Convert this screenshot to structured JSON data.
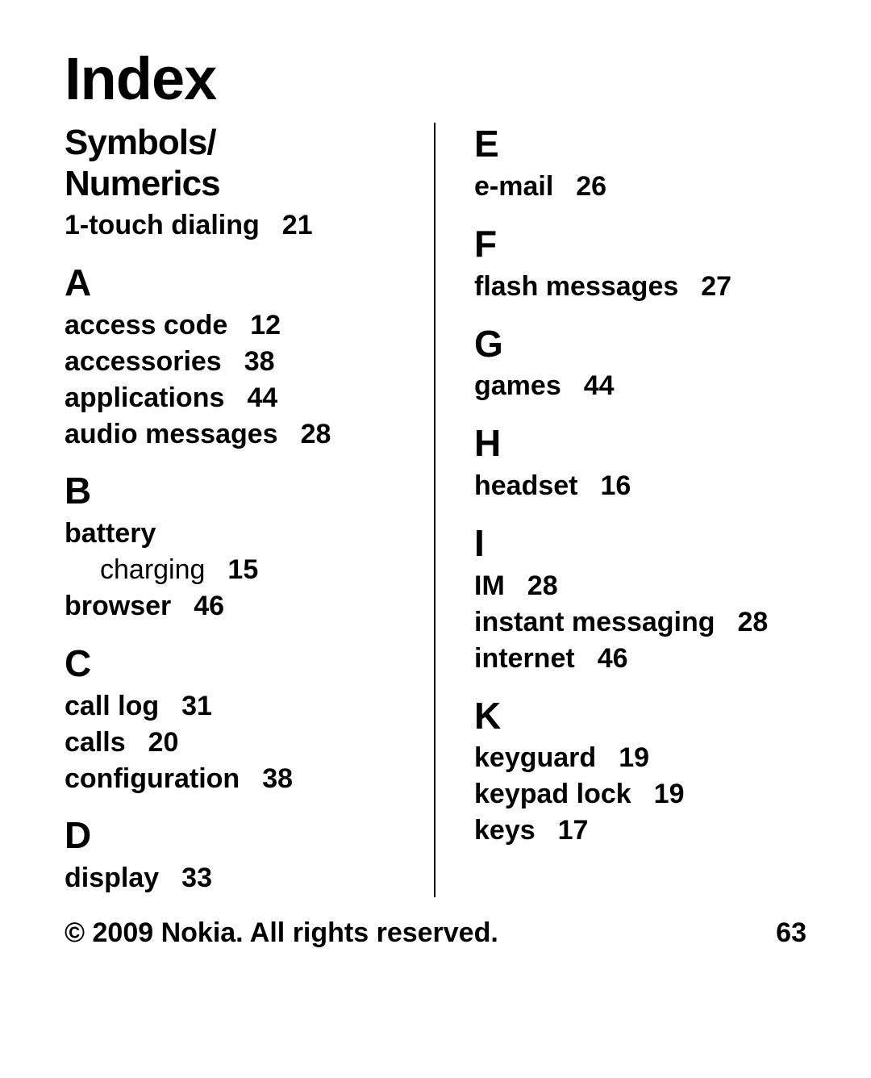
{
  "title": "Index",
  "footer": {
    "copyright": "© 2009 Nokia. All rights reserved.",
    "page": "63"
  },
  "left": {
    "symbols": {
      "heading": "Symbols/\nNumerics",
      "items": [
        {
          "label": "1-touch dialing",
          "page": "21"
        }
      ]
    },
    "A": {
      "heading": "A",
      "items": [
        {
          "label": "access code",
          "page": "12"
        },
        {
          "label": "accessories",
          "page": "38"
        },
        {
          "label": "applications",
          "page": "44"
        },
        {
          "label": "audio messages",
          "page": "28"
        }
      ]
    },
    "B": {
      "heading": "B",
      "items": [
        {
          "label": "battery",
          "page": ""
        },
        {
          "sub": true,
          "label": "charging",
          "page": "15"
        },
        {
          "label": "browser",
          "page": "46"
        }
      ]
    },
    "C": {
      "heading": "C",
      "items": [
        {
          "label": "call log",
          "page": "31"
        },
        {
          "label": "calls",
          "page": "20"
        },
        {
          "label": "configuration",
          "page": "38"
        }
      ]
    },
    "D": {
      "heading": "D",
      "items": [
        {
          "label": "display",
          "page": "33"
        }
      ]
    }
  },
  "right": {
    "E": {
      "heading": "E",
      "items": [
        {
          "label": "e-mail",
          "page": "26"
        }
      ]
    },
    "F": {
      "heading": "F",
      "items": [
        {
          "label": "flash messages",
          "page": "27"
        }
      ]
    },
    "G": {
      "heading": "G",
      "items": [
        {
          "label": "games",
          "page": "44"
        }
      ]
    },
    "H": {
      "heading": "H",
      "items": [
        {
          "label": "headset",
          "page": "16"
        }
      ]
    },
    "I": {
      "heading": "I",
      "items": [
        {
          "label": "IM",
          "page": "28"
        },
        {
          "label": "instant messaging",
          "page": "28"
        },
        {
          "label": "internet",
          "page": "46"
        }
      ]
    },
    "K": {
      "heading": "K",
      "items": [
        {
          "label": "keyguard",
          "page": "19"
        },
        {
          "label": "keypad lock",
          "page": "19"
        },
        {
          "label": "keys",
          "page": "17"
        }
      ]
    }
  }
}
